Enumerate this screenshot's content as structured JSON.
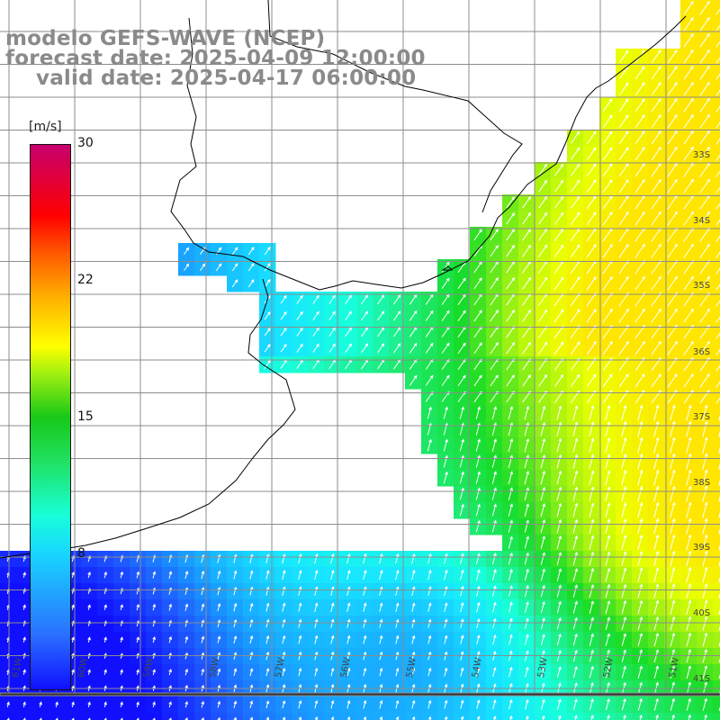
{
  "header": {
    "title": "modelo GEFS-WAVE (NCEP)",
    "forecast_date": "forecast date: 2025-04-09 12:00:00",
    "valid_date": "valid date: 2025-04-17 06:00:00"
  },
  "colorbar": {
    "units": "[m/s]",
    "ticks": [
      "30",
      "22",
      "15",
      "8"
    ],
    "range": [
      0,
      30
    ]
  },
  "axes": {
    "lat_labels": [
      "33S",
      "34S",
      "35S",
      "36S",
      "37S",
      "38S",
      "39S",
      "40S",
      "41S"
    ],
    "lon_labels": [
      "61W",
      "60W",
      "59W",
      "58W",
      "57W",
      "56W",
      "55W",
      "54W",
      "53W",
      "52W",
      "51W"
    ]
  },
  "colors": {
    "land": "#ffffff",
    "coast": "#000000",
    "grid": "#8c8c8c",
    "arrows": "#ffffff",
    "title_text": "#8a8a8a"
  },
  "map_data": {
    "field": "wind speed (m/s) with direction arrows",
    "region": "Rio de la Plata / Uruguay / Buenos Aires coast",
    "lat_range": [
      "33S",
      "41S"
    ],
    "lon_range": [
      "61W",
      "51W"
    ]
  }
}
